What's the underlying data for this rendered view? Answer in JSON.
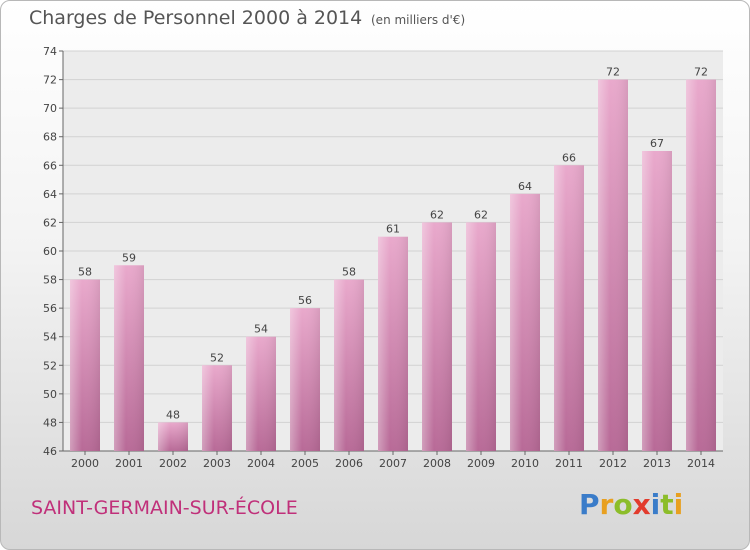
{
  "header": {
    "title": "Charges de Personnel 2000 à 2014",
    "subtitle": "(en milliers d'€)"
  },
  "footer": {
    "commune": "SAINT-GERMAIN-SUR-ÉCOLE",
    "logo_letters": [
      "P",
      "r",
      "o",
      "x",
      "i",
      "t",
      "i"
    ],
    "logo_colors": [
      "#3a7cc9",
      "#e8a020",
      "#8cbd2a",
      "#e23b2d",
      "#3a7cc9",
      "#8cbd2a",
      "#e8a020"
    ]
  },
  "chart_data": {
    "type": "bar",
    "title": "Charges de Personnel 2000 à 2014",
    "subtitle": "(en milliers d'€)",
    "xlabel": "",
    "ylabel": "",
    "categories": [
      "2000",
      "2001",
      "2002",
      "2003",
      "2004",
      "2005",
      "2006",
      "2007",
      "2008",
      "2009",
      "2010",
      "2011",
      "2012",
      "2013",
      "2014"
    ],
    "values": [
      58,
      59,
      48,
      52,
      54,
      56,
      58,
      61,
      62,
      62,
      64,
      66,
      72,
      67,
      72
    ],
    "ylim": [
      46,
      74
    ],
    "yticks": [
      46,
      48,
      50,
      52,
      54,
      56,
      58,
      60,
      62,
      64,
      66,
      68,
      70,
      72,
      74
    ],
    "grid": true,
    "bar_color": "#d685b0",
    "legend": "none"
  }
}
